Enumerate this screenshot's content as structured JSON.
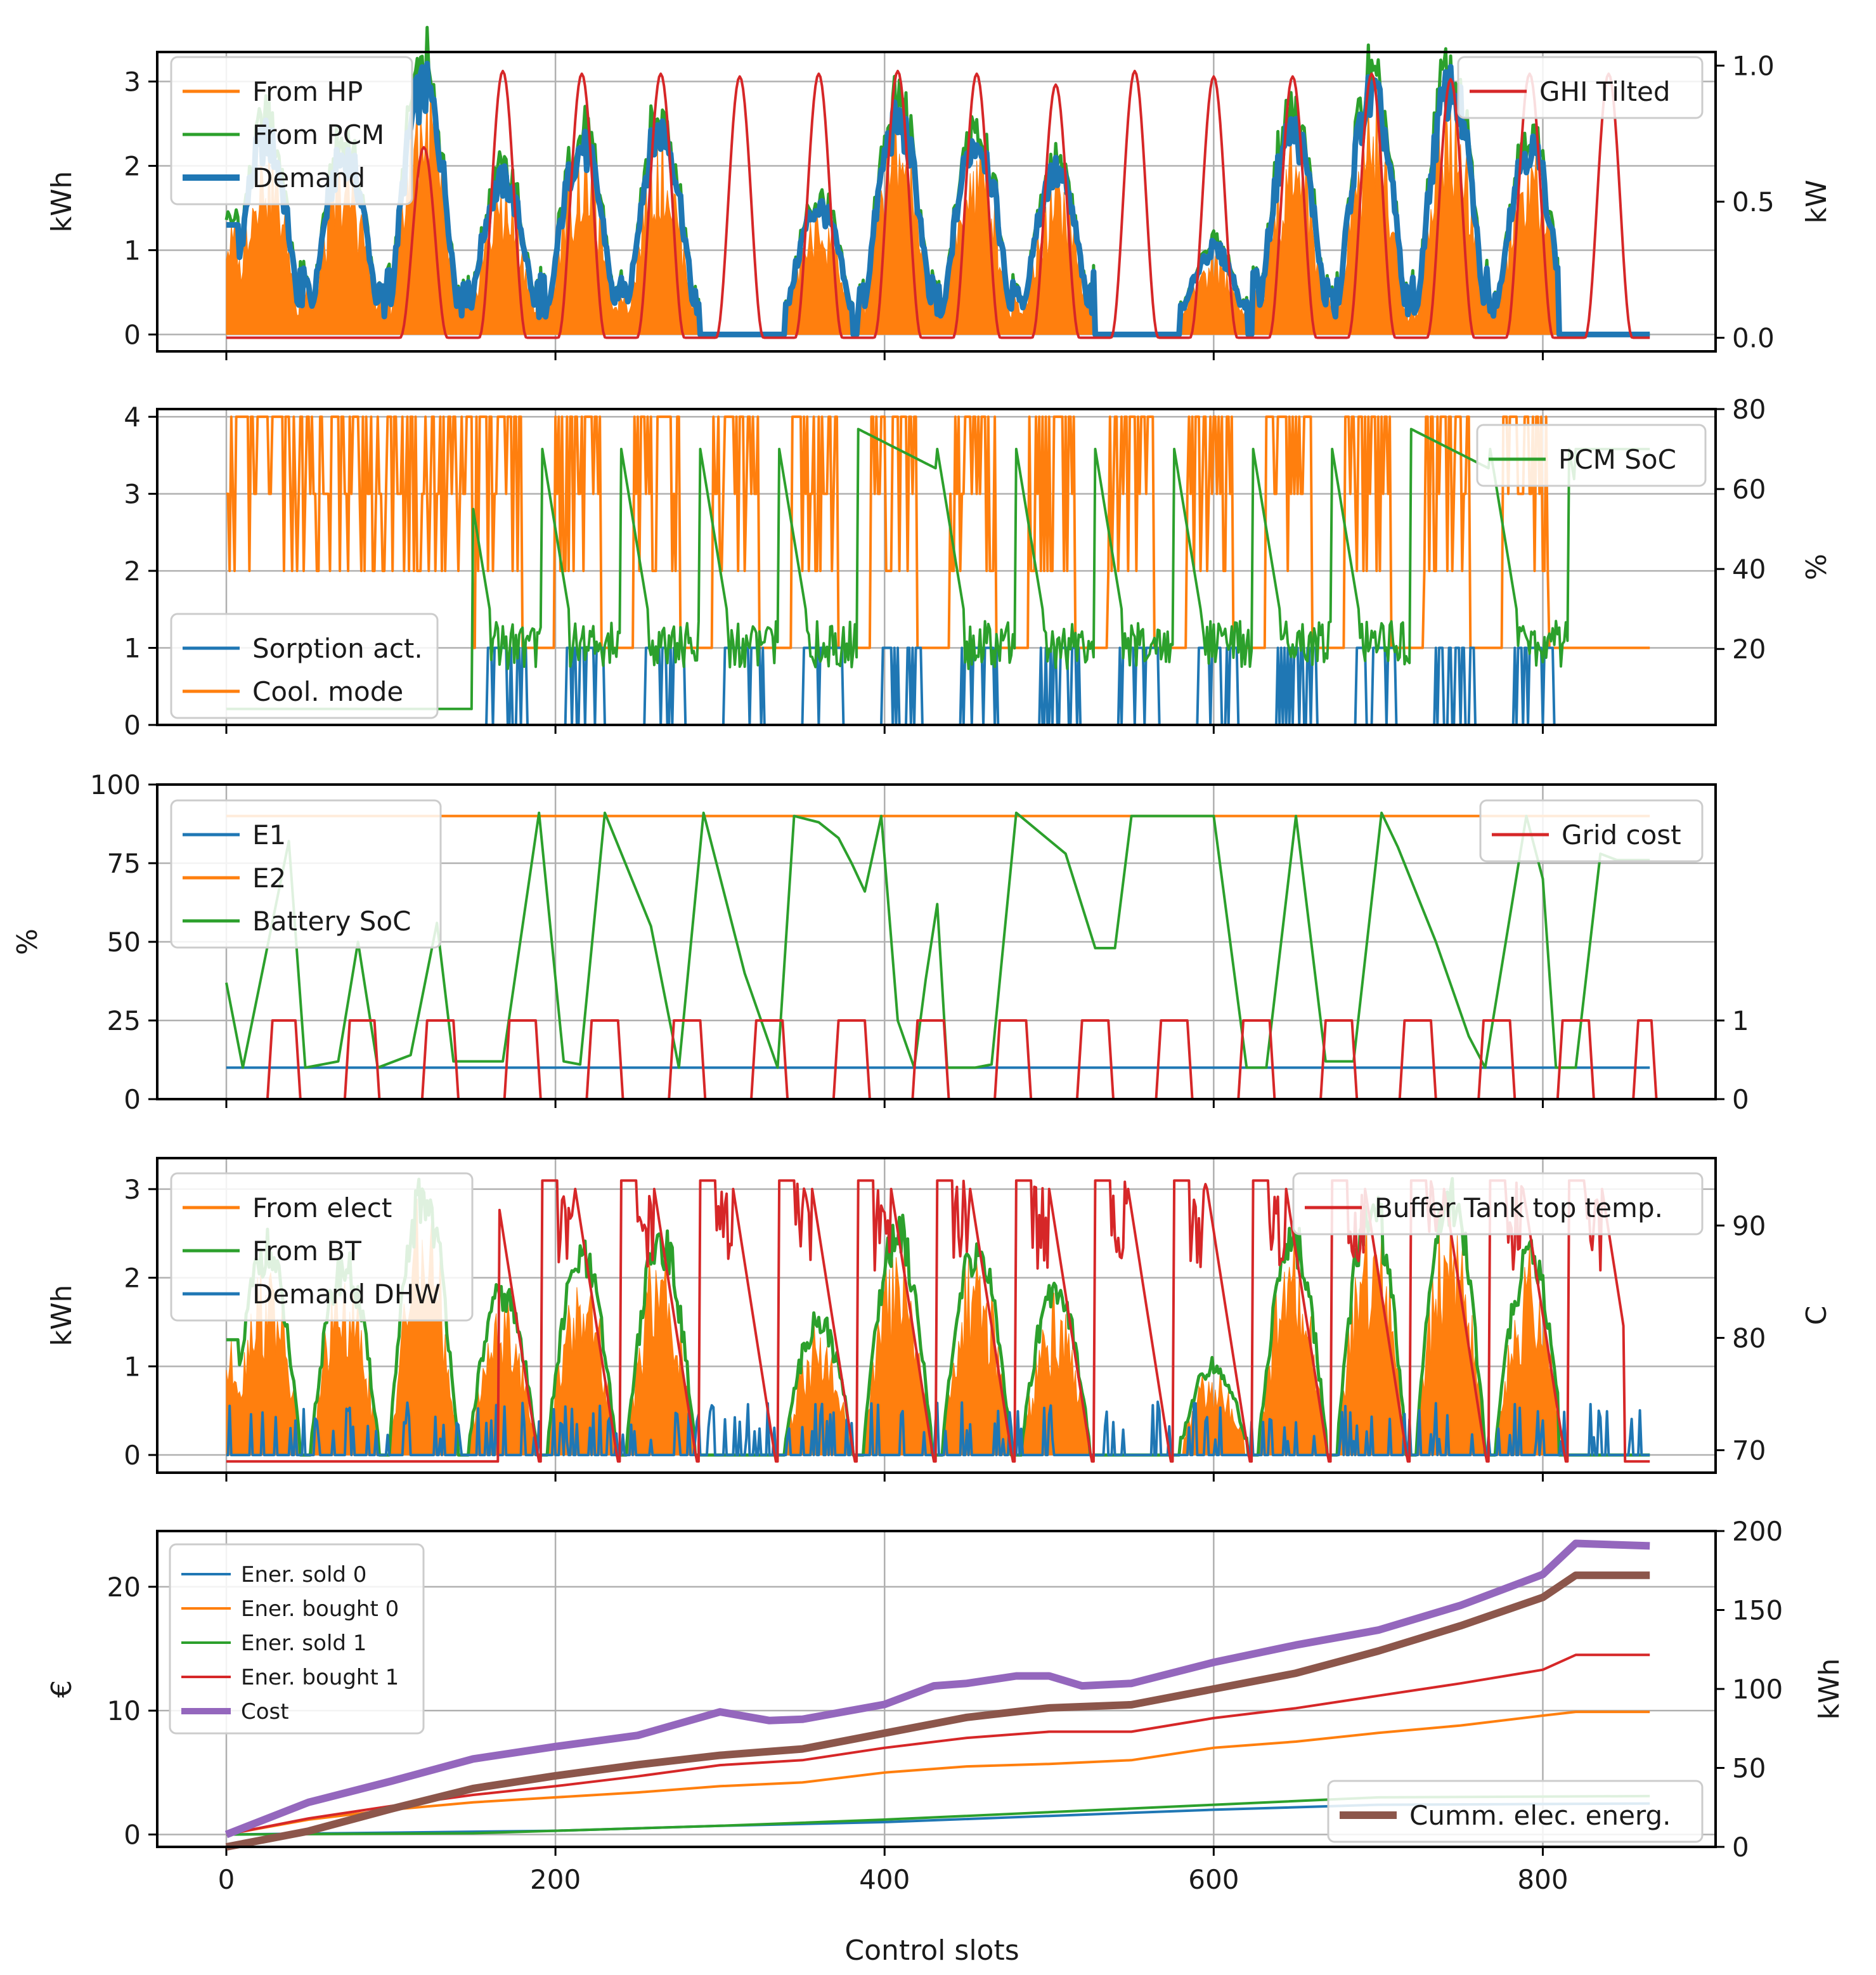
{
  "figure": {
    "xlabel": "Control slots",
    "x_ticks": [
      "0",
      "200",
      "400",
      "600",
      "800"
    ]
  },
  "colors": {
    "blue": "#1f77b4",
    "orange": "#ff7f0e",
    "green": "#2ca02c",
    "red": "#d62728",
    "purple": "#9467bd",
    "brown": "#8c564b"
  },
  "chart_data": [
    {
      "type": "area",
      "id": "p1",
      "xlim": [
        -42,
        905
      ],
      "ylabel_left": "kWh",
      "ylabel_right": "kW",
      "ylim_left": [
        -0.2,
        3.35
      ],
      "ylim_right": [
        -0.05,
        1.05
      ],
      "left_ticks": [
        0,
        1,
        2,
        3
      ],
      "left_tick_labels": [
        "0",
        "1",
        "2",
        "3"
      ],
      "right_ticks": [
        0.0,
        0.5,
        1.0
      ],
      "right_tick_labels": [
        "0.0",
        "0.5",
        "1.0"
      ],
      "legend_left": [
        "From HP",
        "From PCM",
        "Demand"
      ],
      "legend_right": [
        "GHI Tilted"
      ],
      "day_peaks_left": [
        2.3,
        2.1,
        2.9,
        1.8,
        2.2,
        2.4,
        0.0,
        1.5,
        2.5,
        2.3,
        1.9,
        0.0,
        1.0,
        2.4,
        2.8,
        2.9,
        2.2,
        1.7,
        2.7,
        2.4,
        0.0
      ],
      "ghi_peaks": [
        0.0,
        0.0,
        0.7,
        0.98,
        0.97,
        0.97,
        0.96,
        0.97,
        0.98,
        0.97,
        0.93,
        0.98,
        0.96,
        0.96,
        0.97,
        0.95,
        0.97,
        0.97,
        0.97,
        0.97,
        0.42
      ],
      "series": [
        {
          "name": "From HP",
          "axis": "left",
          "color": "orange",
          "kind": "fill"
        },
        {
          "name": "From PCM",
          "axis": "left",
          "color": "green",
          "kind": "line"
        },
        {
          "name": "Demand",
          "axis": "left",
          "color": "blue",
          "kind": "thick-line"
        },
        {
          "name": "GHI Tilted",
          "axis": "right",
          "color": "red",
          "kind": "line"
        }
      ]
    },
    {
      "type": "line",
      "id": "p2",
      "xlim": [
        -42,
        905
      ],
      "ylabel_left": "",
      "ylabel_right": "%",
      "ylim_left": [
        0,
        4.1
      ],
      "ylim_right": [
        1,
        80
      ],
      "left_ticks": [
        0,
        1,
        2,
        3,
        4
      ],
      "left_tick_labels": [
        "0",
        "1",
        "2",
        "3",
        "4"
      ],
      "right_ticks": [
        20,
        40,
        60,
        80
      ],
      "right_tick_labels": [
        "20",
        "40",
        "60",
        "80"
      ],
      "legend_left": [
        "Sorption act.",
        "Cool. mode"
      ],
      "legend_right": [
        "PCM SoC"
      ],
      "series": [
        {
          "name": "Sorption act.",
          "axis": "left",
          "color": "blue"
        },
        {
          "name": "Cool. mode",
          "axis": "left",
          "color": "orange"
        },
        {
          "name": "PCM SoC",
          "axis": "right",
          "color": "green"
        }
      ]
    },
    {
      "type": "line",
      "id": "p3",
      "xlim": [
        -42,
        905
      ],
      "ylabel_left": "%",
      "ylabel_right": "",
      "ylim_left": [
        0,
        100
      ],
      "ylim_right": [
        0,
        4
      ],
      "left_ticks": [
        0,
        25,
        50,
        75,
        100
      ],
      "left_tick_labels": [
        "0",
        "25",
        "50",
        "75",
        "100"
      ],
      "right_ticks": [
        0,
        1
      ],
      "right_tick_labels": [
        "0",
        "1"
      ],
      "legend_left": [
        "E1",
        "E2",
        "Battery SoC"
      ],
      "legend_right": [
        "Grid cost"
      ],
      "e1_value": 10,
      "e2_value": 90,
      "battery_soc_key_points": [
        [
          0,
          37
        ],
        [
          10,
          10
        ],
        [
          38,
          82
        ],
        [
          48,
          10
        ],
        [
          68,
          12
        ],
        [
          80,
          50
        ],
        [
          92,
          10
        ],
        [
          112,
          14
        ],
        [
          128,
          56
        ],
        [
          138,
          12
        ],
        [
          150,
          12
        ],
        [
          168,
          12
        ],
        [
          190,
          91
        ],
        [
          205,
          12
        ],
        [
          215,
          11
        ],
        [
          230,
          91
        ],
        [
          258,
          55
        ],
        [
          275,
          10
        ],
        [
          290,
          91
        ],
        [
          315,
          40
        ],
        [
          335,
          10
        ],
        [
          345,
          90
        ],
        [
          360,
          88
        ],
        [
          372,
          83
        ],
        [
          380,
          75
        ],
        [
          388,
          66
        ],
        [
          398,
          90
        ],
        [
          408,
          25
        ],
        [
          418,
          10
        ],
        [
          425,
          38
        ],
        [
          432,
          62
        ],
        [
          438,
          10
        ],
        [
          455,
          10
        ],
        [
          465,
          11
        ],
        [
          480,
          91
        ],
        [
          510,
          78
        ],
        [
          528,
          48
        ],
        [
          540,
          48
        ],
        [
          550,
          90
        ],
        [
          600,
          90
        ],
        [
          620,
          10
        ],
        [
          632,
          10
        ],
        [
          650,
          90
        ],
        [
          668,
          12
        ],
        [
          685,
          12
        ],
        [
          702,
          91
        ],
        [
          712,
          80
        ],
        [
          735,
          50
        ],
        [
          755,
          20
        ],
        [
          765,
          10
        ],
        [
          790,
          90
        ],
        [
          800,
          70
        ],
        [
          808,
          10
        ],
        [
          820,
          10
        ],
        [
          835,
          78
        ],
        [
          845,
          76
        ],
        [
          865,
          76
        ]
      ],
      "grid_cost_windows": [
        [
          28,
          42
        ],
        [
          75,
          90
        ],
        [
          122,
          138
        ],
        [
          172,
          188
        ],
        [
          222,
          238
        ],
        [
          272,
          288
        ],
        [
          322,
          338
        ],
        [
          372,
          388
        ],
        [
          420,
          436
        ],
        [
          470,
          486
        ],
        [
          520,
          536
        ],
        [
          568,
          584
        ],
        [
          618,
          634
        ],
        [
          668,
          684
        ],
        [
          716,
          732
        ],
        [
          764,
          780
        ],
        [
          812,
          828
        ],
        [
          858,
          866
        ]
      ],
      "series": [
        {
          "name": "E1",
          "axis": "left",
          "color": "blue"
        },
        {
          "name": "E2",
          "axis": "left",
          "color": "orange"
        },
        {
          "name": "Battery SoC",
          "axis": "left",
          "color": "green"
        },
        {
          "name": "Grid cost",
          "axis": "right",
          "color": "red"
        }
      ]
    },
    {
      "type": "area",
      "id": "p4",
      "xlim": [
        -42,
        905
      ],
      "ylabel_left": "kWh",
      "ylabel_right": "C",
      "ylim_left": [
        -0.2,
        3.35
      ],
      "ylim_right": [
        68,
        96
      ],
      "left_ticks": [
        0,
        1,
        2,
        3
      ],
      "left_tick_labels": [
        "0",
        "1",
        "2",
        "3"
      ],
      "right_ticks": [
        70,
        80,
        90
      ],
      "right_tick_labels": [
        "70",
        "80",
        "90"
      ],
      "legend_left": [
        "From elect",
        "From BT",
        "Demand DHW"
      ],
      "legend_right": [
        "Buffer Tank top temp."
      ],
      "series": [
        {
          "name": "From elect",
          "axis": "left",
          "color": "orange",
          "kind": "fill"
        },
        {
          "name": "From BT",
          "axis": "left",
          "color": "green",
          "kind": "line"
        },
        {
          "name": "Demand DHW",
          "axis": "left",
          "color": "blue",
          "kind": "line"
        },
        {
          "name": "Buffer Tank top temp.",
          "axis": "right",
          "color": "red",
          "kind": "line"
        }
      ]
    },
    {
      "type": "line",
      "id": "p5",
      "xlim": [
        -42,
        905
      ],
      "ylabel_left": "€",
      "ylabel_right": "kWh",
      "ylim_left": [
        -1,
        24.5
      ],
      "ylim_right": [
        0,
        200
      ],
      "left_ticks": [
        0,
        10,
        20
      ],
      "left_tick_labels": [
        "0",
        "10",
        "20"
      ],
      "right_ticks": [
        0,
        50,
        100,
        150,
        200
      ],
      "right_tick_labels": [
        "0",
        "50",
        "100",
        "150",
        "200"
      ],
      "legend_left": [
        "Ener. sold 0",
        "Ener. bought 0",
        "Ener. sold 1",
        "Ener. bought 1",
        "Cost"
      ],
      "legend_right": [
        "Cumm. elec. energ."
      ],
      "series": [
        {
          "name": "Ener. sold 0",
          "axis": "left",
          "color": "blue",
          "points": [
            [
              0,
              0
            ],
            [
              200,
              0.3
            ],
            [
              300,
              0.7
            ],
            [
              400,
              1.0
            ],
            [
              500,
              1.5
            ],
            [
              600,
              2.0
            ],
            [
              700,
              2.4
            ],
            [
              865,
              2.5
            ]
          ]
        },
        {
          "name": "Ener. bought 0",
          "axis": "left",
          "color": "orange",
          "points": [
            [
              0,
              0
            ],
            [
              50,
              1.2
            ],
            [
              100,
              2.0
            ],
            [
              150,
              2.6
            ],
            [
              200,
              3.0
            ],
            [
              250,
              3.4
            ],
            [
              300,
              3.9
            ],
            [
              350,
              4.2
            ],
            [
              400,
              5.0
            ],
            [
              450,
              5.5
            ],
            [
              500,
              5.7
            ],
            [
              550,
              6.0
            ],
            [
              600,
              7.0
            ],
            [
              650,
              7.5
            ],
            [
              700,
              8.2
            ],
            [
              750,
              8.8
            ],
            [
              800,
              9.6
            ],
            [
              820,
              9.9
            ],
            [
              865,
              9.9
            ]
          ]
        },
        {
          "name": "Ener. sold 1",
          "axis": "left",
          "color": "green",
          "points": [
            [
              0,
              0
            ],
            [
              150,
              0.1
            ],
            [
              200,
              0.3
            ],
            [
              300,
              0.7
            ],
            [
              400,
              1.2
            ],
            [
              500,
              1.8
            ],
            [
              600,
              2.4
            ],
            [
              700,
              3.0
            ],
            [
              865,
              3.1
            ]
          ]
        },
        {
          "name": "Ener. bought 1",
          "axis": "left",
          "color": "red",
          "points": [
            [
              0,
              0
            ],
            [
              50,
              1.3
            ],
            [
              100,
              2.3
            ],
            [
              150,
              3.2
            ],
            [
              200,
              3.9
            ],
            [
              250,
              4.7
            ],
            [
              300,
              5.6
            ],
            [
              350,
              6.0
            ],
            [
              400,
              7.0
            ],
            [
              450,
              7.8
            ],
            [
              500,
              8.3
            ],
            [
              550,
              8.3
            ],
            [
              600,
              9.4
            ],
            [
              650,
              10.2
            ],
            [
              700,
              11.2
            ],
            [
              750,
              12.2
            ],
            [
              800,
              13.3
            ],
            [
              820,
              14.5
            ],
            [
              865,
              14.5
            ]
          ]
        },
        {
          "name": "Cost",
          "axis": "left",
          "color": "purple",
          "points": [
            [
              0,
              0
            ],
            [
              50,
              2.6
            ],
            [
              100,
              4.3
            ],
            [
              150,
              6.1
            ],
            [
              200,
              7.1
            ],
            [
              250,
              8.0
            ],
            [
              300,
              9.9
            ],
            [
              330,
              9.2
            ],
            [
              350,
              9.3
            ],
            [
              400,
              10.5
            ],
            [
              430,
              12.0
            ],
            [
              450,
              12.2
            ],
            [
              480,
              12.8
            ],
            [
              500,
              12.8
            ],
            [
              520,
              12.0
            ],
            [
              550,
              12.2
            ],
            [
              600,
              13.9
            ],
            [
              650,
              15.3
            ],
            [
              700,
              16.5
            ],
            [
              750,
              18.5
            ],
            [
              800,
              21.0
            ],
            [
              820,
              23.5
            ],
            [
              865,
              23.3
            ]
          ]
        },
        {
          "name": "Cumm. elec. energ.",
          "axis": "right",
          "color": "brown",
          "points": [
            [
              0,
              0
            ],
            [
              50,
              10
            ],
            [
              100,
              24
            ],
            [
              150,
              37
            ],
            [
              200,
              45
            ],
            [
              250,
              52
            ],
            [
              300,
              58
            ],
            [
              350,
              62
            ],
            [
              400,
              72
            ],
            [
              450,
              82
            ],
            [
              500,
              88
            ],
            [
              550,
              90
            ],
            [
              600,
              100
            ],
            [
              650,
              110
            ],
            [
              700,
              124
            ],
            [
              750,
              140
            ],
            [
              800,
              158
            ],
            [
              820,
              172
            ],
            [
              865,
              172
            ]
          ]
        }
      ]
    }
  ]
}
